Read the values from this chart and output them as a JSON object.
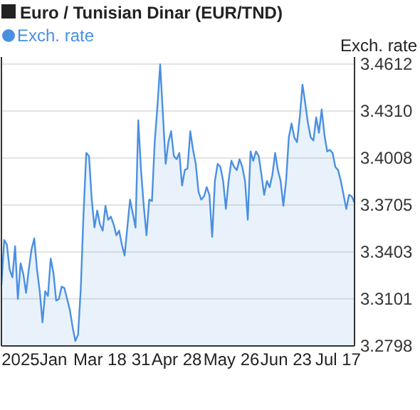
{
  "chart_data": {
    "type": "area",
    "title": "Euro / Tunisian Dinar (EUR/TND)",
    "ylabel": "Exch. rate",
    "categories": [
      null,
      null,
      null,
      null,
      null,
      null,
      null,
      "2025",
      null,
      null,
      null,
      null,
      null,
      null,
      null,
      null,
      null,
      null,
      null,
      "Jan",
      null,
      null,
      null,
      null,
      null,
      null,
      null,
      null,
      null,
      null,
      null,
      null,
      null,
      null,
      null,
      null,
      "Mar 18",
      null,
      null,
      null,
      null,
      null,
      null,
      null,
      null,
      null,
      null,
      null,
      null,
      null,
      null,
      "31",
      null,
      null,
      null,
      null,
      null,
      null,
      null,
      null,
      null,
      null,
      null,
      null,
      "Apr 28",
      null,
      null,
      null,
      null,
      null,
      null,
      null,
      null,
      null,
      null,
      null,
      null,
      null,
      null,
      null,
      null,
      null,
      null,
      null,
      "May 26",
      null,
      null,
      null,
      null,
      null,
      null,
      null,
      null,
      null,
      null,
      null,
      null,
      null,
      null,
      null,
      null,
      null,
      null,
      null,
      "Jun 23",
      null,
      null,
      null,
      null,
      null,
      null,
      null,
      null,
      null,
      null,
      null,
      null,
      null,
      null,
      null,
      null,
      null,
      null,
      "Jul 17",
      null,
      null,
      null,
      null,
      null,
      null
    ],
    "series": [
      {
        "name": "Exch. rate",
        "color": "#4a90e2",
        "values": [
          3.319,
          3.348,
          3.345,
          3.329,
          3.324,
          3.344,
          3.31,
          3.333,
          3.326,
          3.314,
          3.329,
          3.342,
          3.349,
          3.329,
          3.315,
          3.295,
          3.315,
          3.312,
          3.336,
          3.327,
          3.309,
          3.31,
          3.318,
          3.317,
          3.31,
          3.303,
          3.292,
          3.283,
          3.287,
          3.317,
          3.365,
          3.404,
          3.402,
          3.374,
          3.356,
          3.367,
          3.358,
          3.354,
          3.37,
          3.361,
          3.363,
          3.358,
          3.351,
          3.354,
          3.345,
          3.338,
          3.356,
          3.374,
          3.365,
          3.356,
          3.425,
          3.393,
          3.37,
          3.351,
          3.374,
          3.373,
          3.411,
          3.434,
          3.461,
          3.429,
          3.397,
          3.411,
          3.418,
          3.402,
          3.4,
          3.404,
          3.383,
          3.393,
          3.394,
          3.418,
          3.406,
          3.397,
          3.379,
          3.374,
          3.376,
          3.382,
          3.377,
          3.35,
          3.386,
          3.397,
          3.395,
          3.386,
          3.368,
          3.386,
          3.399,
          3.395,
          3.393,
          3.4,
          3.395,
          3.386,
          3.361,
          3.405,
          3.399,
          3.405,
          3.402,
          3.39,
          3.377,
          3.386,
          3.382,
          3.39,
          3.404,
          3.393,
          3.386,
          3.37,
          3.386,
          3.414,
          3.423,
          3.414,
          3.411,
          3.427,
          3.448,
          3.436,
          3.423,
          3.414,
          3.412,
          3.427,
          3.417,
          3.432,
          3.416,
          3.405,
          3.406,
          3.404,
          3.395,
          3.393,
          3.386,
          3.377,
          3.368,
          3.377,
          3.376,
          3.372
        ]
      }
    ],
    "ylim": [
      3.2798,
      3.4658
    ],
    "yticks": [
      3.2798,
      3.3101,
      3.3403,
      3.3705,
      3.4008,
      {
        "value": 3.431,
        "label": "3.4310"
      },
      3.4612
    ],
    "grid": "y",
    "legend": "top left",
    "marker": "none",
    "line_style": "solid"
  }
}
